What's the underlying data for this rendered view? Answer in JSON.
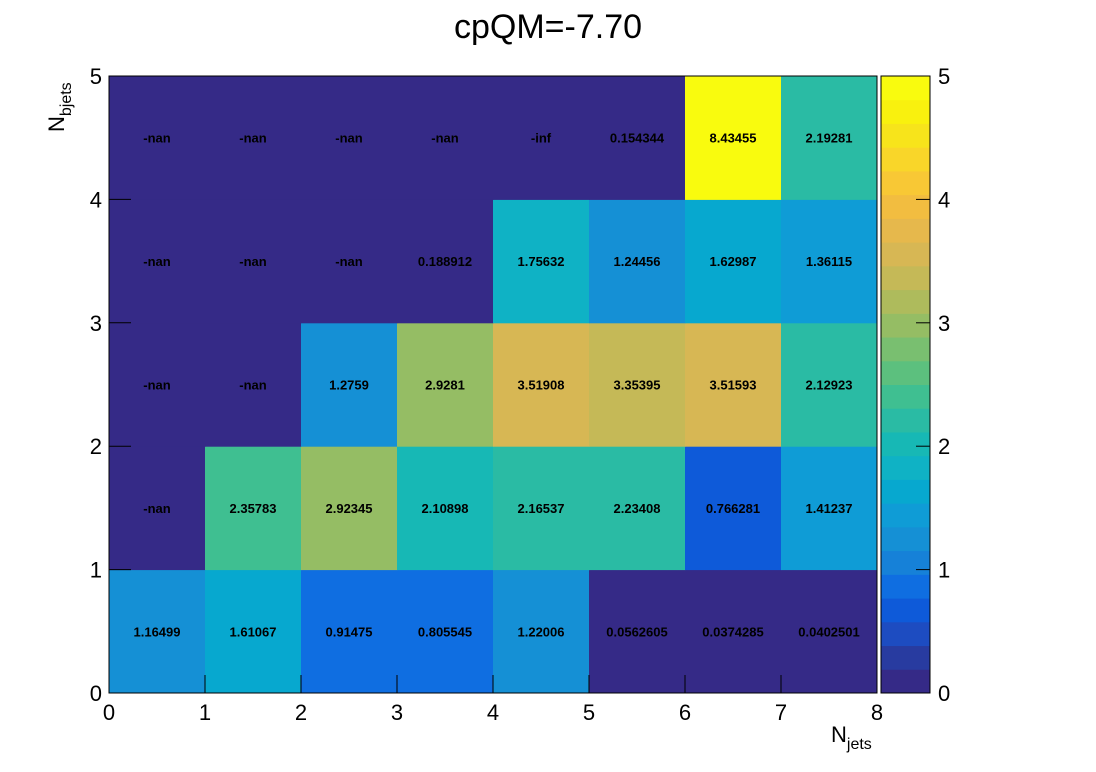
{
  "chart_data": {
    "type": "heatmap",
    "title": "cpQM=-7.70",
    "xlabel_main": "N",
    "xlabel_sub": "jets",
    "ylabel_main": "N",
    "ylabel_sub": "bjets",
    "xlim": [
      0,
      8
    ],
    "ylim": [
      0,
      5
    ],
    "x_ticks": [
      "0",
      "1",
      "2",
      "3",
      "4",
      "5",
      "6",
      "7",
      "8"
    ],
    "y_ticks": [
      "0",
      "1",
      "2",
      "3",
      "4",
      "5"
    ],
    "colorbar": {
      "range": [
        0,
        5
      ],
      "ticks": [
        "0",
        "1",
        "2",
        "3",
        "4",
        "5"
      ]
    },
    "rows": [
      {
        "nbjets": 0,
        "labels": [
          "1.16499",
          "1.61067",
          "0.91475",
          "0.805545",
          "1.22006",
          "0.0562605",
          "0.0374285",
          "0.0402501"
        ],
        "values": [
          1.16499,
          1.61067,
          0.91475,
          0.805545,
          1.22006,
          0.0562605,
          0.0374285,
          0.0402501
        ]
      },
      {
        "nbjets": 1,
        "labels": [
          "-nan",
          "2.35783",
          "2.92345",
          "2.10898",
          "2.16537",
          "2.23408",
          "0.766281",
          "1.41237"
        ],
        "values": [
          null,
          2.35783,
          2.92345,
          2.10898,
          2.16537,
          2.23408,
          0.766281,
          1.41237
        ]
      },
      {
        "nbjets": 2,
        "labels": [
          "-nan",
          "-nan",
          "1.2759",
          "2.9281",
          "3.51908",
          "3.35395",
          "3.51593",
          "2.12923"
        ],
        "values": [
          null,
          null,
          1.2759,
          2.9281,
          3.51908,
          3.35395,
          3.51593,
          2.12923
        ]
      },
      {
        "nbjets": 3,
        "labels": [
          "-nan",
          "-nan",
          "-nan",
          "0.188912",
          "1.75632",
          "1.24456",
          "1.62987",
          "1.36115"
        ],
        "values": [
          null,
          null,
          null,
          0.188912,
          1.75632,
          1.24456,
          1.62987,
          1.36115
        ]
      },
      {
        "nbjets": 4,
        "labels": [
          "-nan",
          "-nan",
          "-nan",
          "-nan",
          "-inf",
          "0.154344",
          "8.43455",
          "2.19281"
        ],
        "values": [
          null,
          null,
          null,
          null,
          null,
          0.154344,
          8.43455,
          2.19281
        ]
      }
    ],
    "palette": [
      "#352a87",
      "#283ba0",
      "#1d4cc1",
      "#0e5ad9",
      "#0f6ee1",
      "#1681d8",
      "#1590d5",
      "#0f9cd6",
      "#07a8cf",
      "#0fb2c5",
      "#17b8b5",
      "#2abba4",
      "#3fbf91",
      "#5cc07e",
      "#79bf70",
      "#95bd64",
      "#aebb5c",
      "#c5b957",
      "#d7b754",
      "#e6b84c",
      "#f2bd40",
      "#f8c835",
      "#f9d629",
      "#f7e41b",
      "#f9f10e",
      "#f9fb0e"
    ]
  }
}
